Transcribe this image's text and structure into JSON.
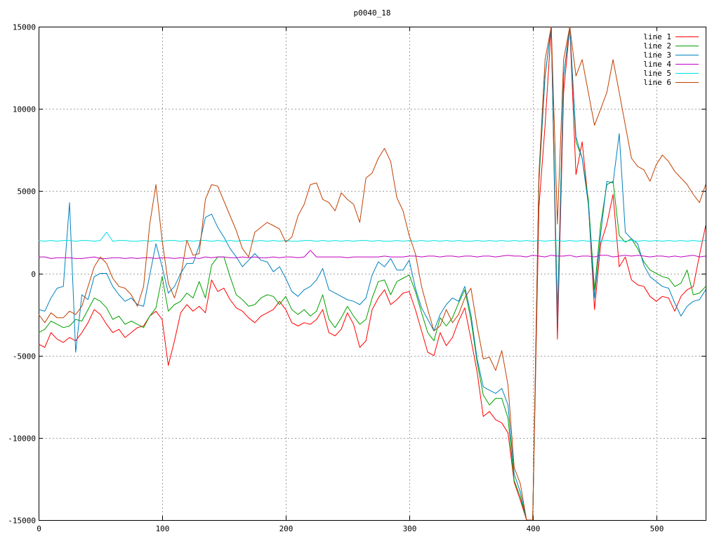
{
  "chart_data": {
    "type": "line",
    "title": "p0040_18",
    "xlabel": "",
    "ylabel": "",
    "xlim": [
      0,
      540
    ],
    "ylim": [
      -15000,
      15000
    ],
    "x_ticks": [
      0,
      100,
      200,
      300,
      400,
      500
    ],
    "y_ticks": [
      -15000,
      -10000,
      -5000,
      0,
      5000,
      10000,
      15000
    ],
    "grid": true,
    "legend_position": "top-right",
    "x": [
      0,
      5,
      10,
      15,
      20,
      25,
      30,
      35,
      40,
      45,
      50,
      55,
      60,
      65,
      70,
      75,
      80,
      85,
      90,
      95,
      100,
      105,
      110,
      115,
      120,
      125,
      130,
      135,
      140,
      145,
      150,
      155,
      160,
      165,
      170,
      175,
      180,
      185,
      190,
      195,
      200,
      205,
      210,
      215,
      220,
      225,
      230,
      235,
      240,
      245,
      250,
      255,
      260,
      265,
      270,
      275,
      280,
      285,
      290,
      295,
      300,
      305,
      310,
      315,
      320,
      325,
      330,
      335,
      340,
      345,
      350,
      355,
      360,
      365,
      370,
      375,
      380,
      385,
      390,
      395,
      400,
      405,
      410,
      415,
      420,
      425,
      430,
      435,
      440,
      445,
      450,
      455,
      460,
      465,
      470,
      475,
      480,
      485,
      490,
      495,
      500,
      505,
      510,
      515,
      520,
      525,
      530,
      535,
      540
    ],
    "series": [
      {
        "name": "line 1",
        "color": "#ff0000",
        "values": [
          -4300,
          -4500,
          -3600,
          -4000,
          -4200,
          -3900,
          -4100,
          -3600,
          -3000,
          -2200,
          -2500,
          -3100,
          -3600,
          -3400,
          -3900,
          -3600,
          -3300,
          -3200,
          -2600,
          -2300,
          -2800,
          -5600,
          -4100,
          -2400,
          -1900,
          -2300,
          -2000,
          -2400,
          -400,
          -1100,
          -900,
          -1600,
          -2100,
          -2300,
          -2700,
          -3000,
          -2600,
          -2400,
          -2200,
          -1700,
          -2200,
          -3000,
          -3200,
          -3000,
          -3100,
          -2800,
          -2200,
          -3600,
          -3800,
          -3400,
          -2400,
          -3100,
          -4500,
          -4100,
          -2200,
          -1500,
          -1000,
          -1900,
          -1600,
          -1200,
          -1100,
          -2200,
          -3500,
          -4800,
          -5000,
          -3600,
          -4400,
          -3900,
          -2900,
          -2100,
          -4000,
          -6000,
          -8700,
          -8400,
          -8900,
          -9100,
          -9700,
          -12700,
          -13800,
          -15000,
          -15000,
          4000,
          9000,
          15000,
          -4000,
          11000,
          15000,
          6000,
          8000,
          4300,
          -2200,
          1800,
          3000,
          4800,
          400,
          1000,
          -400,
          -700,
          -800,
          -1400,
          -1700,
          -1400,
          -1500,
          -2300,
          -1400,
          -1000,
          -800,
          1100,
          2900
        ]
      },
      {
        "name": "line 2",
        "color": "#00a000",
        "values": [
          -3600,
          -3400,
          -2900,
          -3100,
          -3300,
          -3200,
          -2800,
          -2900,
          -2200,
          -1500,
          -1700,
          -2100,
          -2800,
          -2600,
          -3100,
          -2900,
          -3100,
          -3300,
          -2600,
          -2100,
          -200,
          -2300,
          -1900,
          -1700,
          -1200,
          -1500,
          -500,
          -1500,
          500,
          1000,
          1000,
          -200,
          -1300,
          -1600,
          -2000,
          -1900,
          -1500,
          -1300,
          -1400,
          -1900,
          -1400,
          -2200,
          -2500,
          -2200,
          -2600,
          -2300,
          -1300,
          -2800,
          -3300,
          -2700,
          -2000,
          -2600,
          -3100,
          -2800,
          -1500,
          -500,
          -400,
          -1300,
          -500,
          -300,
          -100,
          -1100,
          -2400,
          -3600,
          -4100,
          -2700,
          -3200,
          -2700,
          -1800,
          -1000,
          -2800,
          -5400,
          -7400,
          -8000,
          -7600,
          -7600,
          -8800,
          -12600,
          -13600,
          -15000,
          -15000,
          5500,
          12000,
          15000,
          -2500,
          12000,
          15000,
          8000,
          7000,
          4500,
          -1000,
          3000,
          5400,
          5600,
          2300,
          1900,
          2100,
          1500,
          700,
          200,
          0,
          -200,
          -300,
          -800,
          -600,
          200,
          -1300,
          -1200,
          -800
        ]
      },
      {
        "name": "line 3",
        "color": "#0080c0",
        "values": [
          -2200,
          -2300,
          -1500,
          -900,
          -800,
          4300,
          -4800,
          -1300,
          -1600,
          -200,
          0,
          0,
          -800,
          -1300,
          -1700,
          -1500,
          -1900,
          -2000,
          -100,
          1800,
          400,
          -1200,
          -800,
          0,
          600,
          600,
          1700,
          3400,
          3600,
          2800,
          2200,
          1500,
          1000,
          400,
          800,
          1200,
          800,
          700,
          100,
          400,
          -300,
          -1100,
          -1400,
          -1000,
          -800,
          -400,
          300,
          -1000,
          -1200,
          -1400,
          -1600,
          -1700,
          -1900,
          -1500,
          -100,
          700,
          400,
          900,
          200,
          200,
          800,
          -900,
          -2100,
          -2800,
          -3500,
          -2500,
          -1900,
          -1500,
          -1700,
          -800,
          -2500,
          -5200,
          -6900,
          -7100,
          -7300,
          -7000,
          -8000,
          -12200,
          -13300,
          -15000,
          -15000,
          5800,
          12000,
          15000,
          -3000,
          12000,
          15000,
          8300,
          7000,
          4200,
          -1500,
          2400,
          5600,
          5500,
          8500,
          2500,
          2100,
          1800,
          500,
          -200,
          -500,
          -800,
          -900,
          -1800,
          -2600,
          -2000,
          -1700,
          -1600,
          -1000
        ]
      },
      {
        "name": "line 4",
        "color": "#c000c0",
        "values": [
          1000,
          1000,
          900,
          950,
          950,
          950,
          900,
          900,
          950,
          1000,
          900,
          900,
          950,
          950,
          900,
          950,
          900,
          950,
          950,
          900,
          950,
          950,
          900,
          950,
          900,
          950,
          900,
          1000,
          950,
          1000,
          1000,
          950,
          950,
          1000,
          950,
          1000,
          950,
          950,
          1000,
          950,
          1000,
          1000,
          950,
          1000,
          1400,
          1000,
          1000,
          1000,
          1000,
          1000,
          950,
          1000,
          1000,
          1000,
          1000,
          1000,
          1050,
          1000,
          1000,
          1000,
          1050,
          1050,
          1000,
          1050,
          1050,
          1000,
          1050,
          1050,
          1000,
          1050,
          1050,
          1000,
          1050,
          1050,
          1000,
          1050,
          1100,
          1050,
          1050,
          1000,
          1100,
          1050,
          1000,
          1100,
          1050,
          1050,
          1100,
          1000,
          1050,
          1050,
          1000,
          1100,
          1100,
          1000,
          1050,
          1100,
          1050,
          1100,
          1050,
          1000,
          1050,
          1050,
          1000,
          1050,
          1000,
          1050,
          1100,
          1000,
          1050
        ]
      },
      {
        "name": "line 5",
        "color": "#00e0e0",
        "values": [
          2000,
          1950,
          2000,
          1950,
          2000,
          2000,
          1950,
          2000,
          2000,
          1950,
          2000,
          2500,
          1950,
          2000,
          2000,
          1950,
          1950,
          2000,
          1950,
          2000,
          1950,
          2000,
          2000,
          1950,
          2000,
          1950,
          2000,
          2000,
          1950,
          2000,
          1950,
          2000,
          1950,
          2000,
          2000,
          1950,
          2000,
          1950,
          2000,
          1950,
          2000,
          1950,
          1950,
          2000,
          2000,
          1950,
          2000,
          1950,
          2000,
          1950,
          2000,
          1950,
          2000,
          2000,
          1950,
          2000,
          1950,
          1950,
          2000,
          1950,
          2000,
          1950,
          2000,
          1950,
          2000,
          1950,
          2000,
          1950,
          2000,
          1950,
          1950,
          2000,
          1950,
          2000,
          1950,
          2000,
          1950,
          2000,
          1950,
          2000,
          1950,
          2000,
          1950,
          2000,
          2000,
          1950,
          2000,
          1950,
          2000,
          1950,
          2000,
          1950,
          2000,
          1950,
          2000,
          1950,
          2000,
          1950,
          2000,
          1950,
          2000,
          1950,
          2000,
          1950,
          2000,
          1950,
          2000,
          1950,
          2000
        ]
      },
      {
        "name": "line 6",
        "color": "#c04000",
        "values": [
          -2500,
          -3000,
          -2400,
          -2700,
          -2700,
          -2300,
          -2500,
          -2000,
          -800,
          400,
          1000,
          600,
          -300,
          -800,
          -900,
          -1300,
          -2000,
          -800,
          3000,
          5400,
          2000,
          -600,
          -1500,
          -200,
          2000,
          1100,
          1200,
          4500,
          5400,
          5300,
          4400,
          3500,
          2600,
          1500,
          1000,
          2500,
          2800,
          3100,
          2900,
          2700,
          1900,
          2200,
          3500,
          4200,
          5400,
          5500,
          4500,
          4300,
          3800,
          4900,
          4500,
          4200,
          3100,
          5800,
          6100,
          7000,
          7600,
          6800,
          4600,
          3800,
          2300,
          1200,
          -800,
          -2200,
          -3500,
          -3200,
          -2200,
          -3000,
          -2500,
          -1500,
          -900,
          -3200,
          -5200,
          -5100,
          -5900,
          -4700,
          -6800,
          -11800,
          -12800,
          -15000,
          -15000,
          6000,
          13000,
          15000,
          3000,
          13000,
          15000,
          12000,
          13000,
          11000,
          9000,
          10000,
          11000,
          13000,
          11000,
          9000,
          7000,
          6500,
          6300,
          5600,
          6600,
          7200,
          6800,
          6200,
          5800,
          5400,
          4800,
          4300,
          5400
        ]
      }
    ]
  }
}
